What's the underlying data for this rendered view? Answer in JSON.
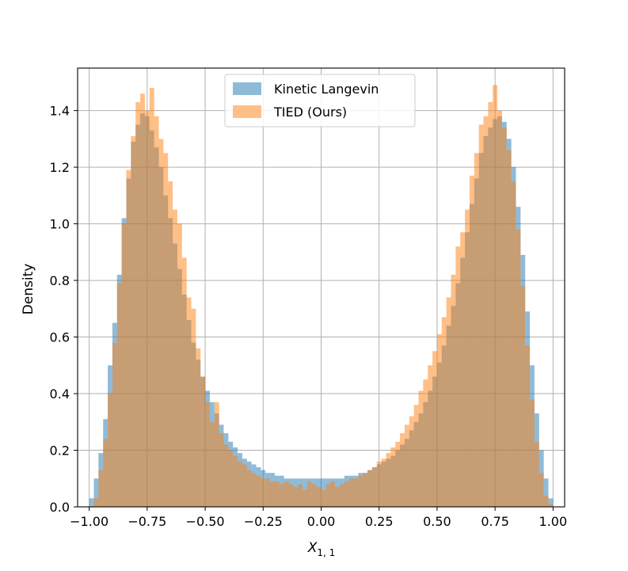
{
  "chart_data": {
    "type": "bar",
    "subtype": "overlaid-histogram",
    "title": "",
    "ylabel": "Density",
    "xlabel_main": "X",
    "xlabel_sub": "1, 1",
    "xlim": [
      -1.05,
      1.05
    ],
    "ylim": [
      0,
      1.55
    ],
    "xticks": [
      -1.0,
      -0.75,
      -0.5,
      -0.25,
      0.0,
      0.25,
      0.5,
      0.75,
      1.0
    ],
    "xtick_labels": [
      "−1.00",
      "−0.75",
      "−0.50",
      "−0.25",
      "0.00",
      "0.25",
      "0.50",
      "0.75",
      "1.00"
    ],
    "yticks": [
      0.0,
      0.2,
      0.4,
      0.6,
      0.8,
      1.0,
      1.2,
      1.4
    ],
    "ytick_labels": [
      "0.0",
      "0.2",
      "0.4",
      "0.6",
      "0.8",
      "1.0",
      "1.2",
      "1.4"
    ],
    "grid": true,
    "legend_position": "top-center",
    "series": [
      {
        "name": "Kinetic Langevin",
        "color": "#1f77b4",
        "opacity": 0.5,
        "bins": [
          [
            -0.99,
            0.03
          ],
          [
            -0.97,
            0.1
          ],
          [
            -0.95,
            0.19
          ],
          [
            -0.93,
            0.31
          ],
          [
            -0.91,
            0.5
          ],
          [
            -0.89,
            0.65
          ],
          [
            -0.87,
            0.82
          ],
          [
            -0.85,
            1.02
          ],
          [
            -0.83,
            1.16
          ],
          [
            -0.81,
            1.29
          ],
          [
            -0.79,
            1.35
          ],
          [
            -0.77,
            1.39
          ],
          [
            -0.75,
            1.38
          ],
          [
            -0.73,
            1.33
          ],
          [
            -0.71,
            1.27
          ],
          [
            -0.69,
            1.2
          ],
          [
            -0.67,
            1.1
          ],
          [
            -0.65,
            1.02
          ],
          [
            -0.63,
            0.93
          ],
          [
            -0.61,
            0.84
          ],
          [
            -0.59,
            0.75
          ],
          [
            -0.57,
            0.66
          ],
          [
            -0.55,
            0.58
          ],
          [
            -0.53,
            0.52
          ],
          [
            -0.51,
            0.46
          ],
          [
            -0.49,
            0.41
          ],
          [
            -0.47,
            0.37
          ],
          [
            -0.45,
            0.33
          ],
          [
            -0.43,
            0.29
          ],
          [
            -0.41,
            0.26
          ],
          [
            -0.39,
            0.23
          ],
          [
            -0.37,
            0.21
          ],
          [
            -0.35,
            0.19
          ],
          [
            -0.33,
            0.17
          ],
          [
            -0.31,
            0.16
          ],
          [
            -0.29,
            0.15
          ],
          [
            -0.27,
            0.14
          ],
          [
            -0.25,
            0.13
          ],
          [
            -0.23,
            0.12
          ],
          [
            -0.21,
            0.12
          ],
          [
            -0.19,
            0.11
          ],
          [
            -0.17,
            0.11
          ],
          [
            -0.15,
            0.1
          ],
          [
            -0.13,
            0.1
          ],
          [
            -0.11,
            0.1
          ],
          [
            -0.09,
            0.1
          ],
          [
            -0.07,
            0.1
          ],
          [
            -0.05,
            0.1
          ],
          [
            -0.03,
            0.1
          ],
          [
            -0.01,
            0.1
          ],
          [
            0.01,
            0.1
          ],
          [
            0.03,
            0.1
          ],
          [
            0.05,
            0.1
          ],
          [
            0.07,
            0.1
          ],
          [
            0.09,
            0.1
          ],
          [
            0.11,
            0.11
          ],
          [
            0.13,
            0.11
          ],
          [
            0.15,
            0.11
          ],
          [
            0.17,
            0.12
          ],
          [
            0.19,
            0.12
          ],
          [
            0.21,
            0.13
          ],
          [
            0.23,
            0.14
          ],
          [
            0.25,
            0.15
          ],
          [
            0.27,
            0.16
          ],
          [
            0.29,
            0.17
          ],
          [
            0.31,
            0.18
          ],
          [
            0.33,
            0.2
          ],
          [
            0.35,
            0.22
          ],
          [
            0.37,
            0.24
          ],
          [
            0.39,
            0.27
          ],
          [
            0.41,
            0.3
          ],
          [
            0.43,
            0.33
          ],
          [
            0.45,
            0.37
          ],
          [
            0.47,
            0.41
          ],
          [
            0.49,
            0.46
          ],
          [
            0.51,
            0.51
          ],
          [
            0.53,
            0.57
          ],
          [
            0.55,
            0.64
          ],
          [
            0.57,
            0.71
          ],
          [
            0.59,
            0.79
          ],
          [
            0.61,
            0.88
          ],
          [
            0.63,
            0.97
          ],
          [
            0.65,
            1.07
          ],
          [
            0.67,
            1.16
          ],
          [
            0.69,
            1.25
          ],
          [
            0.71,
            1.31
          ],
          [
            0.73,
            1.34
          ],
          [
            0.75,
            1.37
          ],
          [
            0.77,
            1.38
          ],
          [
            0.79,
            1.36
          ],
          [
            0.81,
            1.3
          ],
          [
            0.83,
            1.2
          ],
          [
            0.85,
            1.06
          ],
          [
            0.87,
            0.89
          ],
          [
            0.89,
            0.69
          ],
          [
            0.91,
            0.5
          ],
          [
            0.93,
            0.33
          ],
          [
            0.95,
            0.2
          ],
          [
            0.97,
            0.1
          ],
          [
            0.99,
            0.03
          ]
        ]
      },
      {
        "name": "TIED (Ours)",
        "color": "#ff7f0e",
        "opacity": 0.5,
        "bins": [
          [
            -0.99,
            0.0
          ],
          [
            -0.97,
            0.03
          ],
          [
            -0.95,
            0.13
          ],
          [
            -0.93,
            0.24
          ],
          [
            -0.91,
            0.4
          ],
          [
            -0.89,
            0.58
          ],
          [
            -0.87,
            0.79
          ],
          [
            -0.85,
            1.0
          ],
          [
            -0.83,
            1.19
          ],
          [
            -0.81,
            1.31
          ],
          [
            -0.79,
            1.43
          ],
          [
            -0.77,
            1.46
          ],
          [
            -0.75,
            1.4
          ],
          [
            -0.73,
            1.48
          ],
          [
            -0.71,
            1.38
          ],
          [
            -0.69,
            1.3
          ],
          [
            -0.67,
            1.25
          ],
          [
            -0.65,
            1.15
          ],
          [
            -0.63,
            1.05
          ],
          [
            -0.61,
            1.0
          ],
          [
            -0.59,
            0.88
          ],
          [
            -0.57,
            0.74
          ],
          [
            -0.55,
            0.7
          ],
          [
            -0.53,
            0.56
          ],
          [
            -0.51,
            0.46
          ],
          [
            -0.49,
            0.37
          ],
          [
            -0.47,
            0.3
          ],
          [
            -0.45,
            0.37
          ],
          [
            -0.43,
            0.26
          ],
          [
            -0.41,
            0.22
          ],
          [
            -0.39,
            0.2
          ],
          [
            -0.37,
            0.18
          ],
          [
            -0.35,
            0.16
          ],
          [
            -0.33,
            0.15
          ],
          [
            -0.31,
            0.13
          ],
          [
            -0.29,
            0.12
          ],
          [
            -0.27,
            0.11
          ],
          [
            -0.25,
            0.1
          ],
          [
            -0.23,
            0.1
          ],
          [
            -0.21,
            0.09
          ],
          [
            -0.19,
            0.09
          ],
          [
            -0.17,
            0.08
          ],
          [
            -0.15,
            0.09
          ],
          [
            -0.13,
            0.08
          ],
          [
            -0.11,
            0.07
          ],
          [
            -0.09,
            0.08
          ],
          [
            -0.07,
            0.06
          ],
          [
            -0.05,
            0.09
          ],
          [
            -0.03,
            0.08
          ],
          [
            -0.01,
            0.07
          ],
          [
            0.01,
            0.06
          ],
          [
            0.03,
            0.08
          ],
          [
            0.05,
            0.09
          ],
          [
            0.07,
            0.07
          ],
          [
            0.09,
            0.08
          ],
          [
            0.11,
            0.09
          ],
          [
            0.13,
            0.1
          ],
          [
            0.15,
            0.1
          ],
          [
            0.17,
            0.11
          ],
          [
            0.19,
            0.12
          ],
          [
            0.21,
            0.13
          ],
          [
            0.23,
            0.14
          ],
          [
            0.25,
            0.16
          ],
          [
            0.27,
            0.17
          ],
          [
            0.29,
            0.19
          ],
          [
            0.31,
            0.21
          ],
          [
            0.33,
            0.23
          ],
          [
            0.35,
            0.26
          ],
          [
            0.37,
            0.29
          ],
          [
            0.39,
            0.32
          ],
          [
            0.41,
            0.36
          ],
          [
            0.43,
            0.41
          ],
          [
            0.45,
            0.45
          ],
          [
            0.47,
            0.5
          ],
          [
            0.49,
            0.55
          ],
          [
            0.51,
            0.61
          ],
          [
            0.53,
            0.67
          ],
          [
            0.55,
            0.74
          ],
          [
            0.57,
            0.82
          ],
          [
            0.59,
            0.92
          ],
          [
            0.61,
            0.97
          ],
          [
            0.63,
            1.05
          ],
          [
            0.65,
            1.17
          ],
          [
            0.67,
            1.25
          ],
          [
            0.69,
            1.35
          ],
          [
            0.71,
            1.38
          ],
          [
            0.73,
            1.43
          ],
          [
            0.75,
            1.49
          ],
          [
            0.77,
            1.4
          ],
          [
            0.79,
            1.34
          ],
          [
            0.81,
            1.26
          ],
          [
            0.83,
            1.15
          ],
          [
            0.85,
            0.98
          ],
          [
            0.87,
            0.78
          ],
          [
            0.89,
            0.57
          ],
          [
            0.91,
            0.38
          ],
          [
            0.93,
            0.23
          ],
          [
            0.95,
            0.12
          ],
          [
            0.97,
            0.04
          ],
          [
            0.99,
            0.01
          ]
        ]
      }
    ]
  }
}
